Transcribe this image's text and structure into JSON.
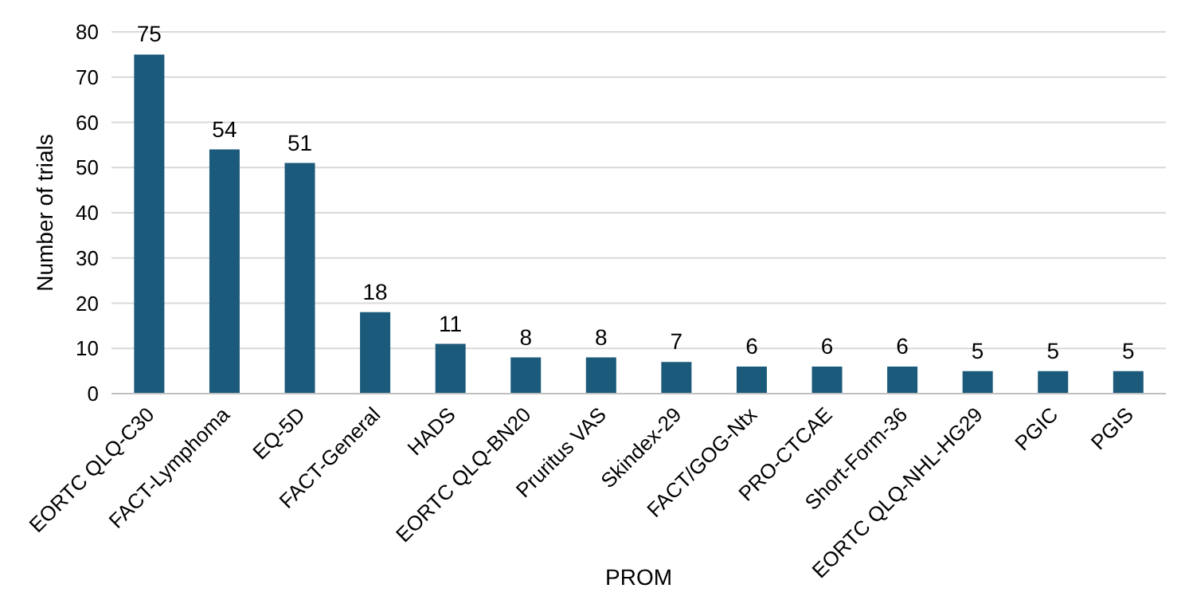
{
  "chart_data": {
    "type": "bar",
    "xlabel": "PROM",
    "ylabel": "Number of trials",
    "categories": [
      "EORTC QLQ-C30",
      "FACT-Lymphoma",
      "EQ-5D",
      "FACT-General",
      "HADS",
      "EORTC QLQ-BN20",
      "Pruritus VAS",
      "Skindex-29",
      "FACT/GOG-Ntx",
      "PRO-CTCAE",
      "Short-Form-36",
      "EORTC QLQ-NHL-HG29",
      "PGIC",
      "PGIS"
    ],
    "values": [
      75,
      54,
      51,
      18,
      11,
      8,
      8,
      7,
      6,
      6,
      6,
      5,
      5,
      5
    ],
    "color": "#1b5a7a",
    "ylim": [
      0,
      80
    ],
    "yticks": [
      0,
      10,
      20,
      30,
      40,
      50,
      60,
      70,
      80
    ],
    "grid": "y",
    "data_labels": true
  }
}
